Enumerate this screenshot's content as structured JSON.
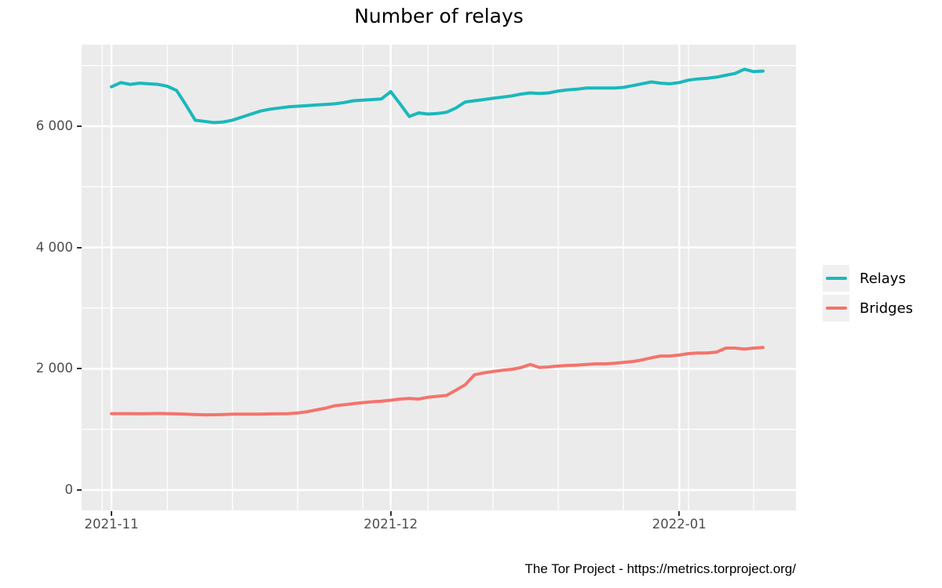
{
  "title": "Number of relays",
  "caption": "The Tor Project - https://metrics.torproject.org/",
  "colors": {
    "panel_background": "#ebebeb",
    "grid": "#ffffff",
    "tick_mark": "#333333",
    "axis_text": "#4d4d4d",
    "relays_line": "#1ab8bc",
    "bridges_line": "#f3746d"
  },
  "chart_data": {
    "type": "line",
    "title": "Number of relays",
    "xlabel": "",
    "ylabel": "",
    "ylim": [
      0,
      7000
    ],
    "grid": "white major+minor gridlines on gray panel",
    "legend_position": "right",
    "start_date": "2021-11-01",
    "x_ticks": [
      {
        "label": "2021-11",
        "day": 0
      },
      {
        "label": "2021-12",
        "day": 30
      },
      {
        "label": "2022-01",
        "day": 61
      }
    ],
    "x_minor_days": [
      -1,
      6,
      13,
      20,
      27,
      34,
      41,
      48,
      55,
      62,
      69
    ],
    "y_ticks": [
      {
        "label": "0",
        "value": 0
      },
      {
        "label": "2 000",
        "value": 2000
      },
      {
        "label": "4 000",
        "value": 4000
      },
      {
        "label": "6 000",
        "value": 6000
      }
    ],
    "y_minor": [
      1000,
      3000,
      5000,
      7000
    ],
    "series": [
      {
        "name": "Relays",
        "color": "#1ab8bc",
        "values": [
          6650,
          6720,
          6690,
          6710,
          6700,
          6690,
          6660,
          6590,
          6350,
          6100,
          6080,
          6060,
          6070,
          6100,
          6150,
          6200,
          6250,
          6280,
          6300,
          6320,
          6330,
          6340,
          6350,
          6360,
          6370,
          6390,
          6420,
          6430,
          6440,
          6450,
          6570,
          6370,
          6160,
          6220,
          6200,
          6210,
          6230,
          6300,
          6400,
          6420,
          6440,
          6460,
          6480,
          6500,
          6530,
          6550,
          6540,
          6550,
          6580,
          6600,
          6610,
          6630,
          6630,
          6630,
          6630,
          6640,
          6670,
          6700,
          6730,
          6710,
          6700,
          6720,
          6760,
          6780,
          6790,
          6810,
          6840,
          6870,
          6940,
          6900,
          6910
        ]
      },
      {
        "name": "Bridges",
        "color": "#f3746d",
        "values": [
          1260,
          1260,
          1260,
          1258,
          1260,
          1262,
          1260,
          1255,
          1250,
          1245,
          1240,
          1242,
          1245,
          1250,
          1252,
          1250,
          1252,
          1255,
          1258,
          1260,
          1270,
          1290,
          1320,
          1350,
          1390,
          1405,
          1425,
          1440,
          1455,
          1465,
          1480,
          1500,
          1510,
          1500,
          1530,
          1545,
          1560,
          1645,
          1735,
          1900,
          1930,
          1955,
          1975,
          1990,
          2020,
          2070,
          2020,
          2030,
          2045,
          2055,
          2060,
          2070,
          2080,
          2080,
          2090,
          2105,
          2120,
          2145,
          2180,
          2210,
          2210,
          2225,
          2250,
          2260,
          2260,
          2275,
          2340,
          2340,
          2325,
          2340,
          2350
        ]
      }
    ]
  }
}
